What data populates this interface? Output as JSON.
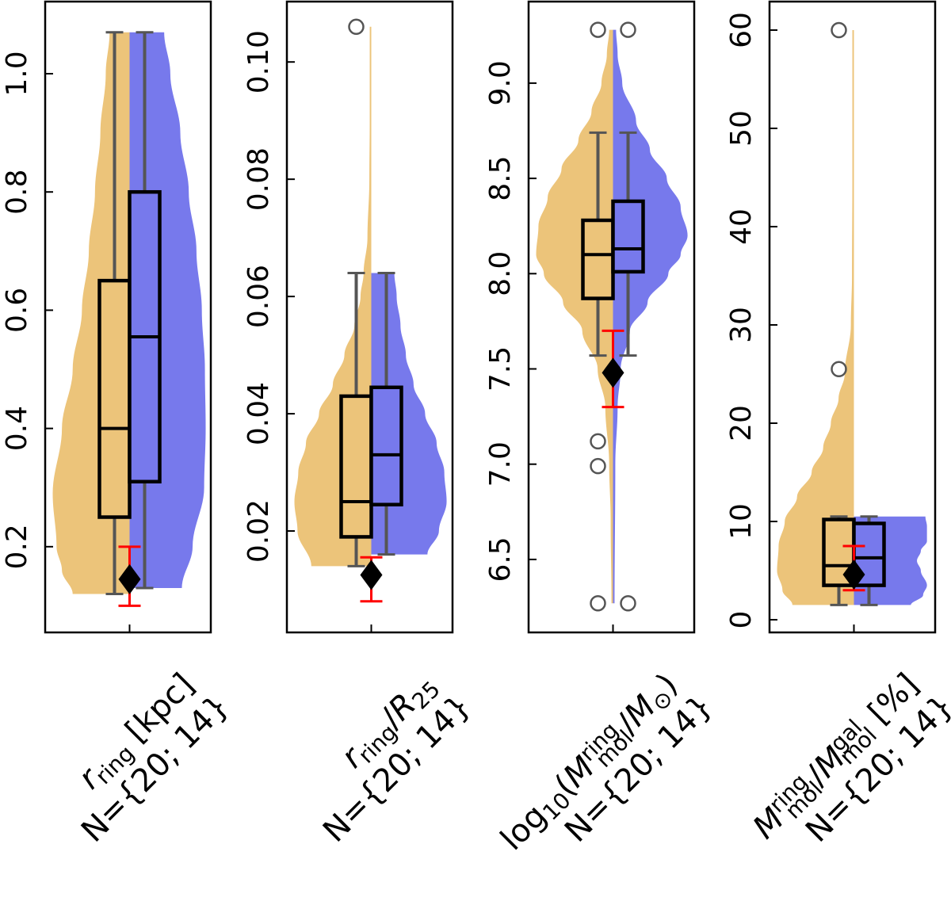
{
  "chart_data": [
    {
      "type": "violin",
      "ylim": [
        0.055,
        1.122
      ],
      "yticks": [
        0.2,
        0.4,
        0.6,
        0.8,
        1.0
      ],
      "ytick_labels": [
        "0.2",
        "0.4",
        "0.6",
        "0.8",
        "1.0"
      ],
      "xlabel": {
        "line1": [
          {
            "t": "r",
            "s": "italic"
          },
          {
            "t": "ring",
            "s": "sub"
          },
          {
            "t": " [kpc]",
            "s": "normal"
          }
        ],
        "line2": "N={20; 14}"
      },
      "groups": [
        {
          "side": "left",
          "color": "#ECC47A",
          "box": {
            "q1": 0.25,
            "median": 0.4,
            "q3": 0.65,
            "whisker_low": 0.12,
            "whisker_high": 1.07
          },
          "outliers": [],
          "violin_profile": [
            [
              0.12,
              0.74
            ],
            [
              0.16,
              0.88
            ],
            [
              0.2,
              0.95
            ],
            [
              0.29,
              1.0
            ],
            [
              0.4,
              0.88
            ],
            [
              0.5,
              0.74
            ],
            [
              0.6,
              0.62
            ],
            [
              0.7,
              0.53
            ],
            [
              0.8,
              0.45
            ],
            [
              0.9,
              0.38
            ],
            [
              1.0,
              0.31
            ],
            [
              1.07,
              0.26
            ]
          ]
        },
        {
          "side": "right",
          "color": "#7779EC",
          "box": {
            "q1": 0.31,
            "median": 0.555,
            "q3": 0.8,
            "whisker_low": 0.13,
            "whisker_high": 1.07
          },
          "outliers": [],
          "violin_profile": [
            [
              0.13,
              0.68
            ],
            [
              0.2,
              0.82
            ],
            [
              0.3,
              0.97
            ],
            [
              0.4,
              0.99
            ],
            [
              0.5,
              0.98
            ],
            [
              0.6,
              0.94
            ],
            [
              0.7,
              0.87
            ],
            [
              0.8,
              0.77
            ],
            [
              0.9,
              0.66
            ],
            [
              1.0,
              0.53
            ],
            [
              1.07,
              0.45
            ]
          ]
        }
      ],
      "marker": {
        "value": 0.145,
        "err_low": 0.1,
        "err_high": 0.2
      }
    },
    {
      "type": "violin",
      "ylim": [
        0.0027,
        0.1103
      ],
      "yticks": [
        0.02,
        0.04,
        0.06,
        0.08,
        0.1
      ],
      "ytick_labels": [
        "0.02",
        "0.04",
        "0.06",
        "0.08",
        "0.10"
      ],
      "xlabel": {
        "line1": [
          {
            "t": "r",
            "s": "italic"
          },
          {
            "t": "ring",
            "s": "sub"
          },
          {
            "t": "/",
            "s": "normal"
          },
          {
            "t": "R",
            "s": "italic"
          },
          {
            "t": "25",
            "s": "sub"
          }
        ],
        "line2": "N={20; 14}"
      },
      "groups": [
        {
          "side": "left",
          "color": "#ECC47A",
          "box": {
            "q1": 0.019,
            "median": 0.025,
            "q3": 0.043,
            "whisker_low": 0.014,
            "whisker_high": 0.064
          },
          "outliers": [
            0.106
          ],
          "violin_profile": [
            [
              0.014,
              0.78
            ],
            [
              0.02,
              0.96
            ],
            [
              0.025,
              1.0
            ],
            [
              0.03,
              0.95
            ],
            [
              0.035,
              0.85
            ],
            [
              0.04,
              0.68
            ],
            [
              0.045,
              0.5
            ],
            [
              0.05,
              0.35
            ],
            [
              0.055,
              0.22
            ],
            [
              0.06,
              0.14
            ],
            [
              0.064,
              0.1
            ],
            [
              0.07,
              0.05
            ],
            [
              0.08,
              0.025
            ],
            [
              0.09,
              0.02
            ],
            [
              0.106,
              0.02
            ]
          ]
        },
        {
          "side": "right",
          "color": "#7779EC",
          "box": {
            "q1": 0.0245,
            "median": 0.033,
            "q3": 0.0445,
            "whisker_low": 0.016,
            "whisker_high": 0.064
          },
          "outliers": [],
          "violin_profile": [
            [
              0.016,
              0.73
            ],
            [
              0.02,
              0.88
            ],
            [
              0.025,
              0.98
            ],
            [
              0.03,
              0.95
            ],
            [
              0.035,
              0.85
            ],
            [
              0.04,
              0.7
            ],
            [
              0.045,
              0.55
            ],
            [
              0.05,
              0.45
            ],
            [
              0.055,
              0.38
            ],
            [
              0.06,
              0.33
            ],
            [
              0.064,
              0.3
            ]
          ]
        }
      ],
      "marker": {
        "value": 0.0125,
        "err_low": 0.008,
        "err_high": 0.0155
      }
    },
    {
      "type": "violin",
      "ylim": [
        6.117,
        9.428
      ],
      "yticks": [
        6.5,
        7.0,
        7.5,
        8.0,
        8.5,
        9.0
      ],
      "ytick_labels": [
        "6.5",
        "7.0",
        "7.5",
        "8.0",
        "8.5",
        "9.0"
      ],
      "xlabel": {
        "line1": [
          {
            "t": "log",
            "s": "normal"
          },
          {
            "t": "10",
            "s": "sub"
          },
          {
            "t": "(",
            "s": "normal"
          },
          {
            "t": "M",
            "s": "italic"
          },
          {
            "t": "ring",
            "s": "sup"
          },
          {
            "t": "mol",
            "s": "subafter"
          },
          {
            "t": "/",
            "s": "normal"
          },
          {
            "t": "M",
            "s": "italic"
          },
          {
            "t": "⊙",
            "s": "sub"
          },
          {
            "t": ")",
            "s": "normal"
          }
        ],
        "line2": "N={20; 14}"
      },
      "groups": [
        {
          "side": "left",
          "color": "#ECC47A",
          "box": {
            "q1": 7.87,
            "median": 8.1,
            "q3": 8.28,
            "whisker_low": 7.57,
            "whisker_high": 8.74
          },
          "outliers": [
            9.28,
            7.12,
            6.99,
            6.27
          ],
          "violin_profile": [
            [
              6.27,
              0.02
            ],
            [
              6.7,
              0.03
            ],
            [
              7.0,
              0.05
            ],
            [
              7.3,
              0.1
            ],
            [
              7.5,
              0.2
            ],
            [
              7.7,
              0.4
            ],
            [
              7.85,
              0.65
            ],
            [
              8.0,
              0.9
            ],
            [
              8.1,
              1.0
            ],
            [
              8.25,
              0.97
            ],
            [
              8.4,
              0.85
            ],
            [
              8.55,
              0.67
            ],
            [
              8.7,
              0.45
            ],
            [
              8.85,
              0.28
            ],
            [
              9.0,
              0.15
            ],
            [
              9.15,
              0.08
            ],
            [
              9.28,
              0.05
            ]
          ]
        },
        {
          "side": "right",
          "color": "#7779EC",
          "box": {
            "q1": 8.01,
            "median": 8.13,
            "q3": 8.38,
            "whisker_low": 7.57,
            "whisker_high": 8.74
          },
          "outliers": [
            9.28,
            6.27
          ],
          "violin_profile": [
            [
              6.27,
              0.02
            ],
            [
              7.0,
              0.03
            ],
            [
              7.3,
              0.06
            ],
            [
              7.5,
              0.1
            ],
            [
              7.7,
              0.22
            ],
            [
              7.85,
              0.45
            ],
            [
              8.0,
              0.72
            ],
            [
              8.1,
              0.88
            ],
            [
              8.2,
              0.97
            ],
            [
              8.35,
              0.88
            ],
            [
              8.5,
              0.7
            ],
            [
              8.65,
              0.48
            ],
            [
              8.8,
              0.3
            ],
            [
              9.0,
              0.12
            ],
            [
              9.15,
              0.06
            ],
            [
              9.28,
              0.04
            ]
          ]
        }
      ],
      "marker": {
        "value": 7.48,
        "err_low": 7.3,
        "err_high": 7.7
      }
    },
    {
      "type": "violin",
      "ylim": [
        -1.29,
        62.9
      ],
      "yticks": [
        0,
        10,
        20,
        30,
        40,
        50,
        60
      ],
      "ytick_labels": [
        "0",
        "10",
        "20",
        "30",
        "40",
        "50",
        "60"
      ],
      "xlabel": {
        "line1": [
          {
            "t": "M",
            "s": "italic"
          },
          {
            "t": "ring",
            "s": "sup"
          },
          {
            "t": "mol",
            "s": "subafter"
          },
          {
            "t": "/",
            "s": "normal"
          },
          {
            "t": "M",
            "s": "italic"
          },
          {
            "t": "gal",
            "s": "sup"
          },
          {
            "t": "mol",
            "s": "subafter"
          },
          {
            "t": " [%]",
            "s": "normal"
          }
        ],
        "line2": "N={20; 14}"
      },
      "groups": [
        {
          "side": "left",
          "color": "#ECC47A",
          "box": {
            "q1": 3.5,
            "median": 5.5,
            "q3": 10.2,
            "whisker_low": 1.5,
            "whisker_high": 10.5
          },
          "outliers": [
            60,
            25.5
          ],
          "violin_profile": [
            [
              1.5,
              0.8
            ],
            [
              3,
              0.93
            ],
            [
              5,
              1.0
            ],
            [
              7.5,
              0.98
            ],
            [
              10,
              0.9
            ],
            [
              12.5,
              0.74
            ],
            [
              15,
              0.55
            ],
            [
              17.5,
              0.4
            ],
            [
              20,
              0.3
            ],
            [
              22.5,
              0.2
            ],
            [
              25,
              0.12
            ],
            [
              30,
              0.04
            ],
            [
              35,
              0.025
            ],
            [
              45,
              0.02
            ],
            [
              60,
              0.02
            ]
          ]
        },
        {
          "side": "right",
          "color": "#7779EC",
          "box": {
            "q1": 3.5,
            "median": 6.3,
            "q3": 9.8,
            "whisker_low": 1.5,
            "whisker_high": 10.5
          },
          "outliers": [],
          "violin_profile": [
            [
              1.5,
              0.74
            ],
            [
              2.5,
              0.9
            ],
            [
              3.5,
              0.95
            ],
            [
              5,
              0.87
            ],
            [
              6,
              0.82
            ],
            [
              7,
              0.87
            ],
            [
              8,
              0.95
            ],
            [
              9.5,
              0.95
            ],
            [
              10.5,
              0.93
            ]
          ]
        }
      ],
      "marker": {
        "value": 4.6,
        "err_low": 3.0,
        "err_high": 7.5
      }
    }
  ],
  "colors": {
    "whisker": "#555555",
    "box_edge": "#000000",
    "marker": "#000000",
    "error_bar": "#FF0000"
  }
}
